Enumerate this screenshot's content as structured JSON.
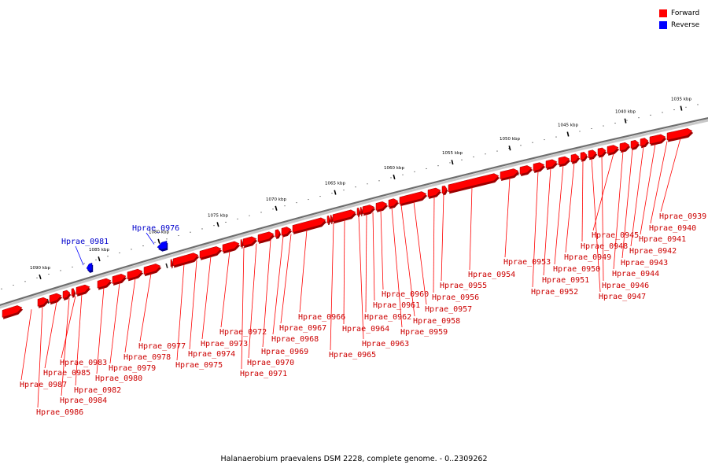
{
  "legend": {
    "forward_label": "Forward",
    "reverse_label": "Reverse",
    "forward_color": "#ff0000",
    "reverse_color": "#0000ff"
  },
  "caption": "Halanaerobium praevalens DSM 2228, complete genome. - 0..2309262",
  "scale": {
    "unit": "kbp",
    "ticks": [
      "1035 kbp",
      "1040 kbp",
      "1045 kbp",
      "1050 kbp",
      "1055 kbp",
      "1060 kbp",
      "1065 kbp",
      "1070 kbp",
      "1075 kbp",
      "1080 kbp",
      "1085 kbp",
      "1090 kbp"
    ]
  },
  "genes": [
    {
      "name": "Hprae_0939",
      "strand": "forward"
    },
    {
      "name": "Hprae_0940",
      "strand": "forward"
    },
    {
      "name": "Hprae_0941",
      "strand": "forward"
    },
    {
      "name": "Hprae_0942",
      "strand": "forward"
    },
    {
      "name": "Hprae_0943",
      "strand": "forward"
    },
    {
      "name": "Hprae_0944",
      "strand": "forward"
    },
    {
      "name": "Hprae_0945",
      "strand": "forward"
    },
    {
      "name": "Hprae_0946",
      "strand": "forward"
    },
    {
      "name": "Hprae_0947",
      "strand": "forward"
    },
    {
      "name": "Hprae_0948",
      "strand": "forward"
    },
    {
      "name": "Hprae_0949",
      "strand": "forward"
    },
    {
      "name": "Hprae_0950",
      "strand": "forward"
    },
    {
      "name": "Hprae_0951",
      "strand": "forward"
    },
    {
      "name": "Hprae_0952",
      "strand": "forward"
    },
    {
      "name": "Hprae_0953",
      "strand": "forward"
    },
    {
      "name": "Hprae_0954",
      "strand": "forward"
    },
    {
      "name": "Hprae_0955",
      "strand": "forward"
    },
    {
      "name": "Hprae_0956",
      "strand": "forward"
    },
    {
      "name": "Hprae_0957",
      "strand": "forward"
    },
    {
      "name": "Hprae_0958",
      "strand": "forward"
    },
    {
      "name": "Hprae_0959",
      "strand": "forward"
    },
    {
      "name": "Hprae_0960",
      "strand": "forward"
    },
    {
      "name": "Hprae_0961",
      "strand": "forward"
    },
    {
      "name": "Hprae_0962",
      "strand": "forward"
    },
    {
      "name": "Hprae_0963",
      "strand": "forward"
    },
    {
      "name": "Hprae_0964",
      "strand": "forward"
    },
    {
      "name": "Hprae_0965",
      "strand": "forward"
    },
    {
      "name": "Hprae_0966",
      "strand": "forward"
    },
    {
      "name": "Hprae_0967",
      "strand": "forward"
    },
    {
      "name": "Hprae_0968",
      "strand": "forward"
    },
    {
      "name": "Hprae_0969",
      "strand": "forward"
    },
    {
      "name": "Hprae_0970",
      "strand": "forward"
    },
    {
      "name": "Hprae_0971",
      "strand": "forward"
    },
    {
      "name": "Hprae_0972",
      "strand": "forward"
    },
    {
      "name": "Hprae_0973",
      "strand": "forward"
    },
    {
      "name": "Hprae_0974",
      "strand": "forward"
    },
    {
      "name": "Hprae_0975",
      "strand": "forward"
    },
    {
      "name": "Hprae_0976",
      "strand": "reverse"
    },
    {
      "name": "Hprae_0977",
      "strand": "forward"
    },
    {
      "name": "Hprae_0978",
      "strand": "forward"
    },
    {
      "name": "Hprae_0979",
      "strand": "forward"
    },
    {
      "name": "Hprae_0980",
      "strand": "forward"
    },
    {
      "name": "Hprae_0981",
      "strand": "reverse"
    },
    {
      "name": "Hprae_0982",
      "strand": "forward"
    },
    {
      "name": "Hprae_0983",
      "strand": "forward"
    },
    {
      "name": "Hprae_0984",
      "strand": "forward"
    },
    {
      "name": "Hprae_0985",
      "strand": "forward"
    },
    {
      "name": "Hprae_0986",
      "strand": "forward"
    },
    {
      "name": "Hprae_0987",
      "strand": "forward"
    }
  ]
}
